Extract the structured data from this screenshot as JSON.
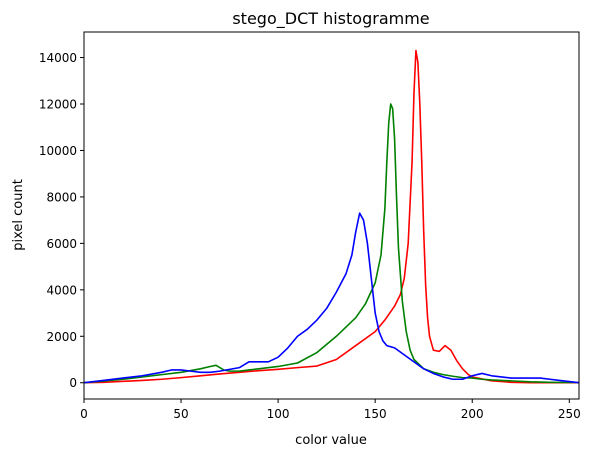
{
  "chart_data": {
    "type": "line",
    "title": "stego_DCT histogramme",
    "xlabel": "color value",
    "ylabel": "pixel count",
    "xlim": [
      0,
      255
    ],
    "ylim": [
      -700,
      15100
    ],
    "xticks": [
      0,
      50,
      100,
      150,
      200,
      250
    ],
    "yticks": [
      0,
      2000,
      4000,
      6000,
      8000,
      10000,
      12000,
      14000
    ],
    "grid": false,
    "legend": "none",
    "series": [
      {
        "color": "#ff0000",
        "points": [
          [
            0,
            0
          ],
          [
            10,
            20
          ],
          [
            20,
            60
          ],
          [
            30,
            100
          ],
          [
            40,
            150
          ],
          [
            50,
            220
          ],
          [
            60,
            300
          ],
          [
            70,
            380
          ],
          [
            80,
            450
          ],
          [
            90,
            520
          ],
          [
            100,
            580
          ],
          [
            110,
            650
          ],
          [
            120,
            720
          ],
          [
            130,
            1000
          ],
          [
            140,
            1600
          ],
          [
            150,
            2200
          ],
          [
            155,
            2700
          ],
          [
            160,
            3300
          ],
          [
            163,
            3800
          ],
          [
            165,
            4500
          ],
          [
            167,
            6000
          ],
          [
            169,
            9500
          ],
          [
            170,
            12500
          ],
          [
            171,
            14300
          ],
          [
            172,
            13800
          ],
          [
            173,
            12000
          ],
          [
            174,
            9500
          ],
          [
            175,
            6500
          ],
          [
            176,
            4200
          ],
          [
            177,
            2800
          ],
          [
            178,
            2000
          ],
          [
            180,
            1400
          ],
          [
            183,
            1350
          ],
          [
            186,
            1600
          ],
          [
            189,
            1400
          ],
          [
            192,
            950
          ],
          [
            195,
            600
          ],
          [
            198,
            350
          ],
          [
            200,
            250
          ],
          [
            210,
            80
          ],
          [
            220,
            20
          ],
          [
            230,
            0
          ],
          [
            240,
            0
          ],
          [
            255,
            0
          ]
        ]
      },
      {
        "color": "#008000",
        "points": [
          [
            0,
            0
          ],
          [
            10,
            70
          ],
          [
            20,
            150
          ],
          [
            30,
            250
          ],
          [
            40,
            350
          ],
          [
            50,
            450
          ],
          [
            60,
            600
          ],
          [
            65,
            700
          ],
          [
            68,
            750
          ],
          [
            72,
            550
          ],
          [
            75,
            500
          ],
          [
            80,
            500
          ],
          [
            85,
            550
          ],
          [
            90,
            600
          ],
          [
            100,
            700
          ],
          [
            110,
            850
          ],
          [
            120,
            1300
          ],
          [
            130,
            2000
          ],
          [
            140,
            2800
          ],
          [
            145,
            3400
          ],
          [
            150,
            4300
          ],
          [
            153,
            5500
          ],
          [
            155,
            7500
          ],
          [
            156,
            9500
          ],
          [
            157,
            11200
          ],
          [
            158,
            12000
          ],
          [
            159,
            11800
          ],
          [
            160,
            10500
          ],
          [
            161,
            8000
          ],
          [
            162,
            5800
          ],
          [
            164,
            3500
          ],
          [
            166,
            2200
          ],
          [
            168,
            1400
          ],
          [
            170,
            1000
          ],
          [
            175,
            600
          ],
          [
            180,
            450
          ],
          [
            185,
            350
          ],
          [
            190,
            280
          ],
          [
            195,
            220
          ],
          [
            200,
            200
          ],
          [
            205,
            150
          ],
          [
            210,
            120
          ],
          [
            220,
            80
          ],
          [
            230,
            40
          ],
          [
            240,
            20
          ],
          [
            250,
            10
          ],
          [
            255,
            10
          ]
        ]
      },
      {
        "color": "#0000ff",
        "points": [
          [
            0,
            0
          ],
          [
            10,
            100
          ],
          [
            20,
            200
          ],
          [
            30,
            300
          ],
          [
            40,
            450
          ],
          [
            45,
            550
          ],
          [
            50,
            550
          ],
          [
            55,
            500
          ],
          [
            60,
            450
          ],
          [
            65,
            450
          ],
          [
            70,
            500
          ],
          [
            80,
            650
          ],
          [
            85,
            900
          ],
          [
            90,
            900
          ],
          [
            95,
            900
          ],
          [
            100,
            1100
          ],
          [
            105,
            1500
          ],
          [
            110,
            2000
          ],
          [
            115,
            2300
          ],
          [
            120,
            2700
          ],
          [
            125,
            3200
          ],
          [
            130,
            3900
          ],
          [
            135,
            4700
          ],
          [
            138,
            5500
          ],
          [
            140,
            6500
          ],
          [
            142,
            7300
          ],
          [
            144,
            7000
          ],
          [
            146,
            6000
          ],
          [
            148,
            4500
          ],
          [
            150,
            3000
          ],
          [
            152,
            2200
          ],
          [
            154,
            1800
          ],
          [
            156,
            1600
          ],
          [
            160,
            1500
          ],
          [
            165,
            1200
          ],
          [
            170,
            900
          ],
          [
            175,
            600
          ],
          [
            180,
            400
          ],
          [
            185,
            250
          ],
          [
            190,
            150
          ],
          [
            195,
            150
          ],
          [
            200,
            300
          ],
          [
            205,
            400
          ],
          [
            210,
            300
          ],
          [
            215,
            250
          ],
          [
            220,
            200
          ],
          [
            225,
            200
          ],
          [
            230,
            200
          ],
          [
            235,
            200
          ],
          [
            240,
            150
          ],
          [
            245,
            100
          ],
          [
            250,
            50
          ],
          [
            255,
            0
          ]
        ]
      }
    ]
  }
}
